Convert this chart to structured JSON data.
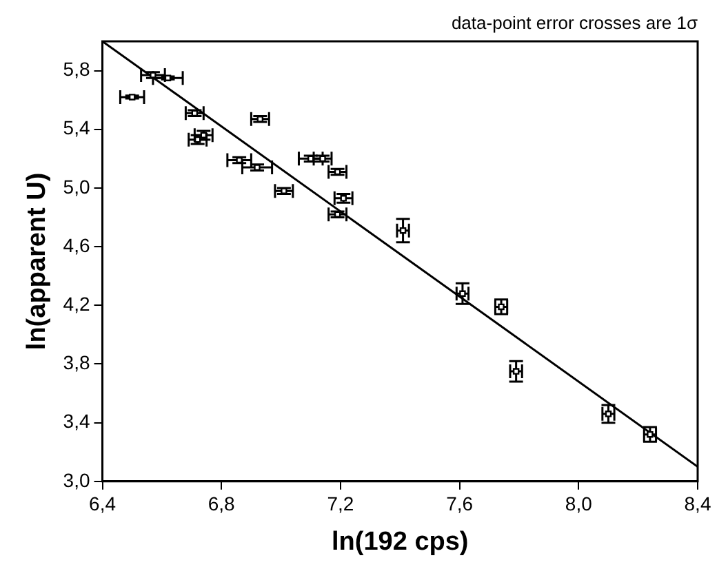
{
  "chart_data": {
    "type": "scatter",
    "xlabel": "ln(192 cps)",
    "ylabel": "ln(apparent U)",
    "annotations": [
      "data-point error crosses are 1σ"
    ],
    "xlim": [
      6.4,
      8.4
    ],
    "ylim": [
      3.0,
      6.0
    ],
    "xticks": [
      {
        "value": 6.4,
        "label": "6,4"
      },
      {
        "value": 6.8,
        "label": "6,8"
      },
      {
        "value": 7.2,
        "label": "7,2"
      },
      {
        "value": 7.6,
        "label": "7,6"
      },
      {
        "value": 8.0,
        "label": "8,0"
      },
      {
        "value": 8.4,
        "label": "8,4"
      }
    ],
    "yticks": [
      {
        "value": 3.0,
        "label": "3,0"
      },
      {
        "value": 3.4,
        "label": "3,4"
      },
      {
        "value": 3.8,
        "label": "3,8"
      },
      {
        "value": 4.2,
        "label": "4,2"
      },
      {
        "value": 4.6,
        "label": "4,6"
      },
      {
        "value": 5.0,
        "label": "5,0"
      },
      {
        "value": 5.4,
        "label": "5,4"
      },
      {
        "value": 5.8,
        "label": "5,8"
      }
    ],
    "grid": false,
    "legend": false,
    "marker": "square",
    "series": [
      {
        "color": "#000000",
        "x": [
          6.5,
          6.57,
          6.62,
          6.71,
          6.72,
          6.74,
          6.86,
          6.92,
          6.93,
          7.01,
          7.1,
          7.14,
          7.19,
          7.19,
          7.21,
          7.41,
          7.61,
          7.74,
          7.79,
          8.1,
          8.24
        ],
        "values": [
          5.62,
          5.77,
          5.75,
          5.51,
          5.33,
          5.36,
          5.19,
          5.14,
          5.47,
          4.98,
          5.2,
          5.2,
          5.11,
          4.82,
          4.93,
          4.71,
          4.28,
          4.19,
          3.75,
          3.46,
          3.32
        ],
        "errors": [
          0.01,
          0.02,
          0.01,
          0.02,
          0.03,
          0.03,
          0.02,
          0.02,
          0.02,
          0.02,
          0.02,
          0.02,
          0.02,
          0.02,
          0.03,
          0.08,
          0.07,
          0.05,
          0.07,
          0.06,
          0.05
        ],
        "xerrors": [
          0.04,
          0.04,
          0.05,
          0.03,
          0.03,
          0.03,
          0.04,
          0.05,
          0.03,
          0.03,
          0.04,
          0.03,
          0.03,
          0.03,
          0.03,
          0.02,
          0.02,
          0.02,
          0.02,
          0.02,
          0.02
        ]
      },
      {
        "type": "line",
        "color": "#000000",
        "x": [
          6.4,
          8.4
        ],
        "values": [
          6.0,
          3.1
        ],
        "marker": "none"
      }
    ]
  }
}
